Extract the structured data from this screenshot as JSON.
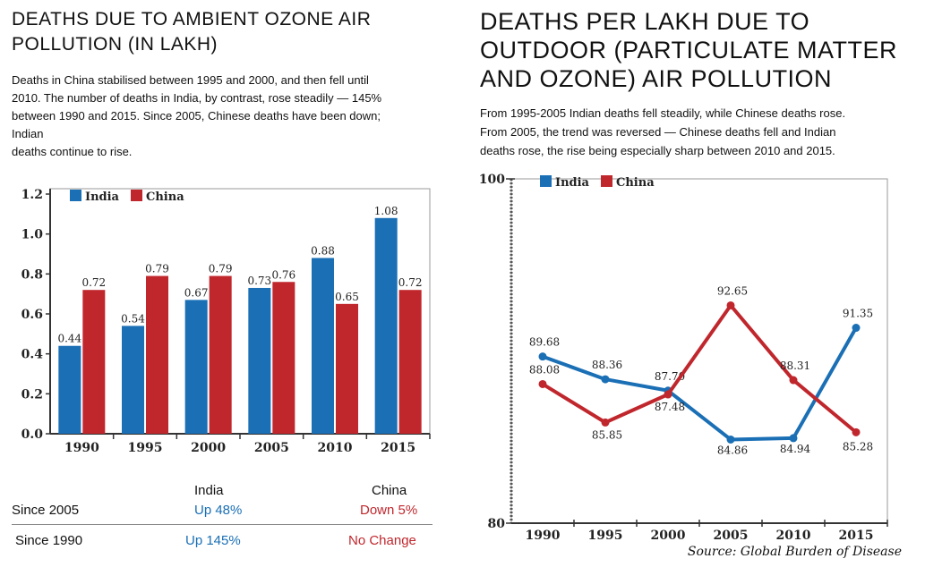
{
  "left_panel": {
    "title_line1": "DEATHS DUE TO AMBIENT OZONE AIR",
    "title_line2": "POLLUTION (IN LAKH)",
    "description_lines": [
      "Deaths in China stabilised between 1995 and 2000, and then fell until",
      "2010. The number of deaths in India, by contrast, rose steadily — 145%",
      "between 1990 and 2015. Since 2005, Chinese deaths have been down;",
      "Indian",
      "deaths continue to rise."
    ]
  },
  "right_panel": {
    "title_line1": "DEATHS PER LAKH DUE TO",
    "title_line2": "OUTDOOR (PARTICULATE MATTER",
    "title_line3": "AND OZONE) AIR POLLUTION",
    "description_lines": [
      "From 1995-2005 Indian deaths fell steadily, while Chinese deaths rose.",
      "From 2005, the trend was reversed — Chinese deaths fell and Indian",
      "deaths rose, the rise being especially sharp between 2010 and 2015."
    ],
    "source": "Source: Global Burden of Disease"
  },
  "summary": {
    "header_india": "India",
    "header_china": "China",
    "rows": [
      {
        "label": "Since 2005",
        "india": "Up 48%",
        "china": "Down 5%"
      },
      {
        "label": "Since 1990",
        "india": "Up 145%",
        "china": "No Change"
      }
    ]
  },
  "colors": {
    "india": "#1a6fb5",
    "china": "#c0272d"
  },
  "chart_data": [
    {
      "type": "bar",
      "categories": [
        "1990",
        "1995",
        "2000",
        "2005",
        "2010",
        "2015"
      ],
      "series": [
        {
          "name": "India",
          "values": [
            0.44,
            0.54,
            0.67,
            0.73,
            0.88,
            1.08
          ],
          "labels": [
            "0.44",
            "0.54",
            "0.67",
            "0.73",
            "0.88",
            "1.08"
          ]
        },
        {
          "name": "China",
          "values": [
            0.72,
            0.79,
            0.79,
            0.76,
            0.65,
            0.72
          ],
          "labels": [
            "0.72",
            "0.79",
            "0.79",
            "0.76",
            "0.65",
            "0.72"
          ]
        }
      ],
      "yticks": [
        "0.0",
        "0.2",
        "0.4",
        "0.6",
        "0.8",
        "1.0",
        "1.2"
      ],
      "ylim": [
        0,
        1.2
      ],
      "legend": "top-left"
    },
    {
      "type": "line",
      "categories": [
        "1990",
        "1995",
        "2000",
        "2005",
        "2010",
        "2015"
      ],
      "series": [
        {
          "name": "India",
          "values": [
            89.68,
            88.36,
            87.7,
            84.86,
            84.94,
            91.35
          ],
          "labels": [
            "89.68",
            "88.36",
            "87.70",
            "84.86",
            "84.94",
            "91.35"
          ]
        },
        {
          "name": "China",
          "values": [
            88.08,
            85.85,
            87.48,
            92.65,
            88.31,
            85.28
          ],
          "labels": [
            "88.08",
            "85.85",
            "87.48",
            "92.65",
            "88.31",
            "85.28"
          ]
        }
      ],
      "yticks": [
        "80",
        "100"
      ],
      "ylim": [
        80,
        100
      ],
      "legend": "top-left"
    }
  ]
}
